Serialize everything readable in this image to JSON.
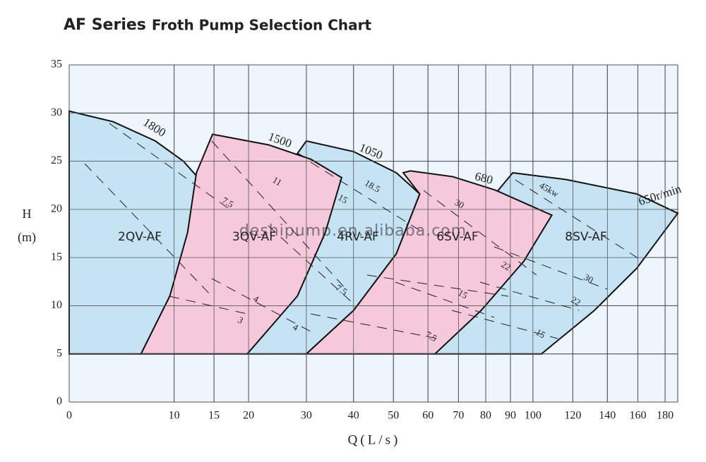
{
  "chart_data": {
    "type": "region",
    "title": [
      "AF Series",
      "Froth Pump Selection Chart"
    ],
    "y_label": [
      "H",
      "(m)"
    ],
    "x_label": "Q(L/s)",
    "watermark": "deshipump.en.alibaba.com",
    "xlim": [
      0,
      190
    ],
    "ylim": [
      0,
      35
    ],
    "xticks": [
      0,
      10,
      15,
      20,
      30,
      40,
      50,
      60,
      70,
      80,
      90,
      100,
      120,
      140,
      160,
      180
    ],
    "yticks": [
      0,
      5,
      10,
      15,
      20,
      25,
      30,
      35
    ],
    "grid": true,
    "series": [
      {
        "name": "2QV-AF",
        "color": "#c6e3f4",
        "x": [
          0,
          0,
          3.7,
          7.9,
          11.1,
          14,
          12,
          9.5,
          6.4
        ],
        "values": [
          5,
          30.2,
          29.1,
          27.1,
          25,
          22.3,
          17.6,
          11,
          5
        ]
      },
      {
        "name": "4RV-AF",
        "color": "#c6e3f4",
        "x": [
          19.8,
          37.3,
          28.3,
          30,
          40,
          50.8,
          57.5,
          50.8,
          40,
          30
        ],
        "values": [
          5,
          23.3,
          25.8,
          27.1,
          26,
          23.8,
          21.6,
          15.4,
          9.5,
          5
        ]
      },
      {
        "name": "3QV-AF",
        "color": "#f5c9da",
        "x": [
          6.4,
          9.5,
          11.6,
          12.7,
          14.8,
          23.2,
          30.9,
          37.3,
          33.8,
          28.3,
          19.8
        ],
        "values": [
          5,
          11,
          17.6,
          23.8,
          27.8,
          26.7,
          25.2,
          23.3,
          17.6,
          11,
          5
        ]
      },
      {
        "name": "8SV-AF",
        "color": "#c6e3f4",
        "x": [
          62.2,
          85,
          91,
          116.4,
          159.3,
          190,
          159.3,
          132.1,
          104
        ],
        "values": [
          5,
          22,
          23.8,
          23.1,
          21.6,
          19.6,
          13.9,
          9.5,
          5
        ]
      },
      {
        "name": "6SV-AF",
        "color": "#f5c9da",
        "x": [
          30,
          40,
          50.8,
          57.5,
          52.7,
          54.7,
          68,
          83.8,
          109.1,
          95.8,
          78.2,
          62.2
        ],
        "values": [
          5,
          9.5,
          15.4,
          21.6,
          23.8,
          24,
          23.4,
          22,
          19.4,
          14.6,
          9.5,
          5
        ]
      }
    ],
    "speed_labels": [
      "1800",
      "1500",
      "1050",
      "680",
      "650r/min"
    ],
    "power_labels": [
      "7.5",
      "11",
      "15",
      "18.5",
      "7.5",
      "4",
      "3",
      "4",
      "30",
      "22",
      "15",
      "7.5",
      "45kw",
      "30",
      "22",
      "15"
    ]
  }
}
